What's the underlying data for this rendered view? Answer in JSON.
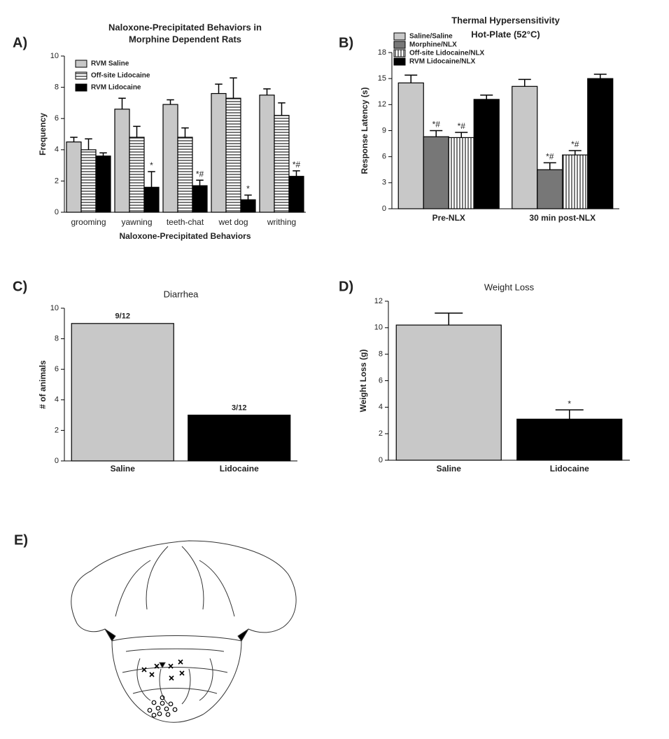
{
  "chart_data": [
    {
      "type": "bar",
      "panel_label": "A)",
      "title": [
        "Naloxone-Precipitated Behaviors in",
        "Morphine Dependent Rats"
      ],
      "ylabel": "Frequency",
      "xlabel": "Naloxone-Precipitated Behaviors",
      "categories": [
        "grooming",
        "yawning",
        "teeth-chat",
        "wet dog",
        "writhing"
      ],
      "ylim": [
        0,
        10
      ],
      "yticks": [
        0,
        2,
        4,
        6,
        8,
        10
      ],
      "legend": "upper left",
      "series": [
        {
          "name": "RVM Saline",
          "color": "#c8c8c8",
          "values": [
            4.5,
            6.6,
            6.9,
            7.6,
            7.5
          ],
          "errors": [
            0.3,
            0.7,
            0.3,
            0.6,
            0.4
          ]
        },
        {
          "name": "Off-site Lidocaine",
          "color": "#ffffff",
          "pattern": "hstripe",
          "values": [
            4.0,
            4.8,
            4.8,
            7.3,
            6.2
          ],
          "errors": [
            0.7,
            0.7,
            0.6,
            1.3,
            0.8
          ]
        },
        {
          "name": "RVM Lidocaine",
          "color": "#000000",
          "values": [
            3.6,
            1.6,
            1.7,
            0.8,
            2.3
          ],
          "errors": [
            0.2,
            1.0,
            0.35,
            0.3,
            0.35
          ],
          "annotations": [
            null,
            "*",
            "*#",
            "*",
            "*#"
          ]
        }
      ]
    },
    {
      "type": "bar",
      "panel_label": "B)",
      "title": [
        "Thermal Hypersensitivity",
        "Hot-Plate (52°C)"
      ],
      "ylabel": "Response Latency (s)",
      "categories": [
        "Pre-NLX",
        "30 min post-NLX"
      ],
      "ylim": [
        0,
        18
      ],
      "yticks": [
        0,
        3,
        6,
        9,
        12,
        15,
        18
      ],
      "legend": "upper left",
      "series": [
        {
          "name": "Saline/Saline",
          "color": "#c8c8c8",
          "values": [
            14.5,
            14.1
          ],
          "errors": [
            0.9,
            0.8
          ]
        },
        {
          "name": "Morphine/NLX",
          "color": "#777777",
          "values": [
            8.3,
            4.5
          ],
          "errors": [
            0.7,
            0.8
          ],
          "annotations": [
            "*#",
            "*#"
          ]
        },
        {
          "name": "Off-site Lidocaine/NLX",
          "color": "#ffffff",
          "pattern": "vstripe",
          "values": [
            8.2,
            6.2
          ],
          "errors": [
            0.6,
            0.5
          ],
          "annotations": [
            "*#",
            "*#"
          ]
        },
        {
          "name": "RVM Lidocaine/NLX",
          "color": "#000000",
          "values": [
            12.6,
            15.0
          ],
          "errors": [
            0.5,
            0.5
          ]
        }
      ]
    },
    {
      "type": "bar",
      "panel_label": "C)",
      "title": "Diarrhea",
      "ylabel": "# of animals",
      "categories": [
        "Saline",
        "Lidocaine"
      ],
      "values": [
        9,
        3
      ],
      "value_labels": [
        "9/12",
        "3/12"
      ],
      "colors": [
        "#c8c8c8",
        "#000000"
      ],
      "ylim": [
        0,
        10
      ],
      "yticks": [
        0,
        2,
        4,
        6,
        8,
        10
      ]
    },
    {
      "type": "bar",
      "panel_label": "D)",
      "title": "Weight Loss",
      "ylabel": "Weight Loss (g)",
      "categories": [
        "Saline",
        "Lidocaine"
      ],
      "values": [
        10.2,
        3.1
      ],
      "errors": [
        0.9,
        0.7
      ],
      "annotations": [
        null,
        "*"
      ],
      "colors": [
        "#c8c8c8",
        "#000000"
      ],
      "ylim": [
        0,
        12
      ],
      "yticks": [
        0,
        2,
        4,
        6,
        8,
        10,
        12
      ]
    }
  ],
  "panel_e": {
    "label": "E)"
  }
}
